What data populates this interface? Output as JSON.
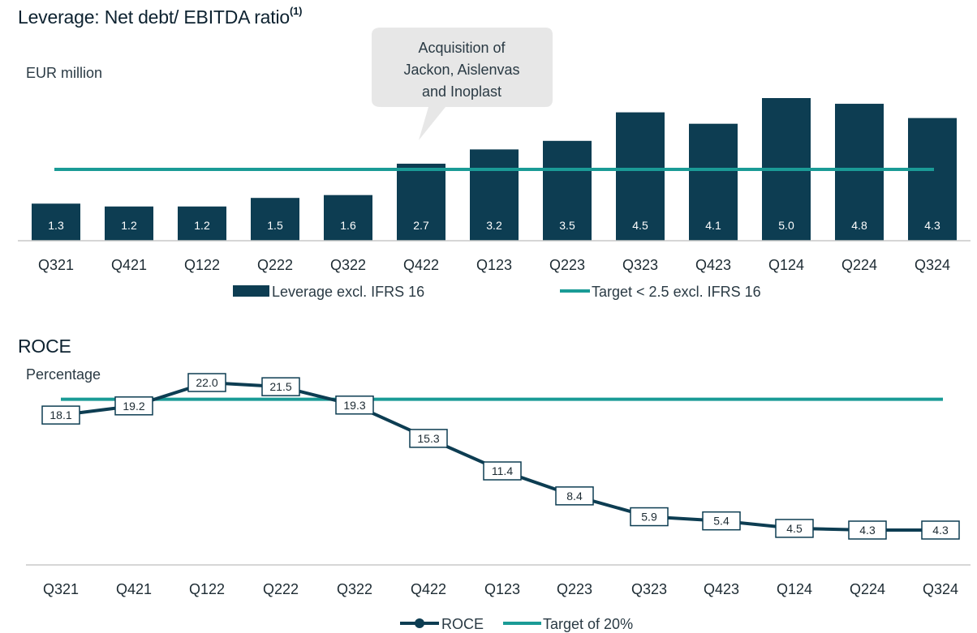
{
  "leverage": {
    "title": "Leverage: Net debt/ EBITDA ratio",
    "title_sup": "(1)",
    "unit": "EUR million",
    "callout": [
      "Acquisition of",
      "Jackon, Aislenvas",
      "and Inoplast"
    ],
    "legend_bar": "Leverage excl. IFRS 16",
    "legend_line": "Target < 2.5 excl. IFRS 16"
  },
  "roce": {
    "title": "ROCE",
    "unit": "Percentage",
    "legend_line": "ROCE",
    "legend_target": "Target of 20%"
  },
  "colors": {
    "bar": "#0d3d52",
    "target": "#1a9b96",
    "line": "#0d3d52",
    "axis": "#c8c8c8"
  },
  "chart_data": [
    {
      "type": "bar",
      "title": "Leverage: Net debt/ EBITDA ratio",
      "ylabel": "EUR million",
      "categories": [
        "Q321",
        "Q421",
        "Q122",
        "Q222",
        "Q322",
        "Q422",
        "Q123",
        "Q223",
        "Q323",
        "Q423",
        "Q124",
        "Q224",
        "Q324"
      ],
      "series": [
        {
          "name": "Leverage excl. IFRS 16",
          "values": [
            1.3,
            1.2,
            1.2,
            1.5,
            1.6,
            2.7,
            3.2,
            3.5,
            4.5,
            4.1,
            5.0,
            4.8,
            4.3
          ]
        }
      ],
      "target": {
        "name": "Target < 2.5 excl. IFRS 16",
        "value": 2.5
      },
      "annotation": {
        "text": "Acquisition of Jackon, Aislenvas and Inoplast",
        "category": "Q422"
      },
      "ylim": [
        0,
        5.0
      ],
      "legend": "bottom"
    },
    {
      "type": "line",
      "title": "ROCE",
      "ylabel": "Percentage",
      "categories": [
        "Q321",
        "Q421",
        "Q122",
        "Q222",
        "Q322",
        "Q422",
        "Q123",
        "Q223",
        "Q323",
        "Q423",
        "Q124",
        "Q224",
        "Q324"
      ],
      "series": [
        {
          "name": "ROCE",
          "values": [
            18.1,
            19.2,
            22.0,
            21.5,
            19.3,
            15.3,
            11.4,
            8.4,
            5.9,
            5.4,
            4.5,
            4.3,
            4.3
          ]
        }
      ],
      "target": {
        "name": "Target of 20%",
        "value": 20
      },
      "legend": "bottom"
    }
  ]
}
